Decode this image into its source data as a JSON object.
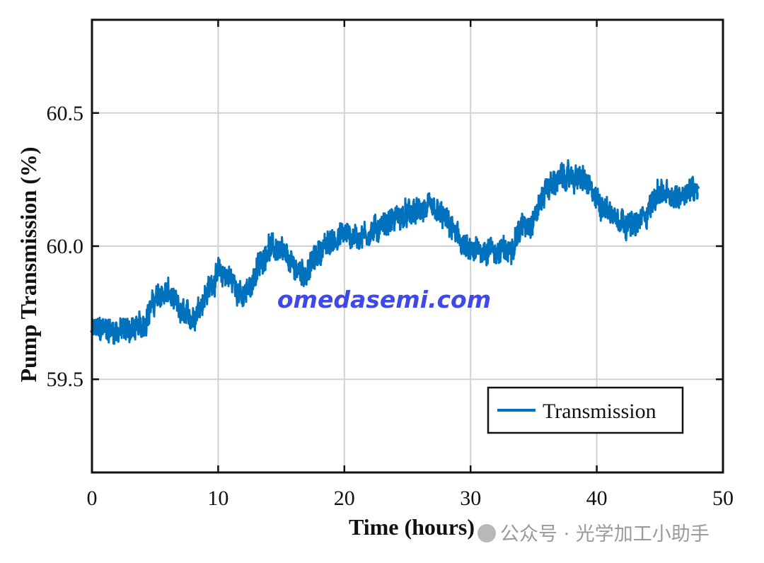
{
  "chart_data": {
    "type": "line",
    "xlabel": "Time (hours)",
    "ylabel": "Pump Transmission (%)",
    "xlim": [
      0,
      50
    ],
    "ylim": [
      59.15,
      60.85
    ],
    "xticks": [
      0,
      10,
      20,
      30,
      40,
      50
    ],
    "xtick_labels": [
      "0",
      "10",
      "20",
      "30",
      "40",
      "50"
    ],
    "yticks": [
      59.5,
      60.0,
      60.5
    ],
    "ytick_labels": [
      "59.5",
      "60.0",
      "60.5"
    ],
    "grid": true,
    "legend_position": "bottom-right",
    "series": [
      {
        "name": "Transmission",
        "color": "#0072BD",
        "x": [
          0,
          1,
          2,
          3,
          4,
          5,
          6,
          7,
          8,
          9,
          10,
          11,
          12,
          13,
          14,
          15,
          16,
          17,
          18,
          19,
          20,
          21,
          22,
          23,
          24,
          25,
          26,
          27,
          28,
          29,
          30,
          31,
          32,
          33,
          34,
          35,
          36,
          37,
          38,
          39,
          40,
          41,
          42,
          43,
          44,
          45,
          46,
          47,
          48
        ],
        "y": [
          59.68,
          59.69,
          59.68,
          59.69,
          59.7,
          59.8,
          59.83,
          59.75,
          59.73,
          59.82,
          59.9,
          59.88,
          59.8,
          59.9,
          60.0,
          59.98,
          59.92,
          59.9,
          59.98,
          60.02,
          60.05,
          60.03,
          60.05,
          60.08,
          60.1,
          60.12,
          60.13,
          60.14,
          60.1,
          60.03,
          59.97,
          59.99,
          59.98,
          59.98,
          60.07,
          60.1,
          60.22,
          60.25,
          60.26,
          60.25,
          60.17,
          60.13,
          60.1,
          60.07,
          60.13,
          60.21,
          60.17,
          60.21,
          60.22
        ]
      }
    ]
  },
  "overlays": {
    "watermark": "omedasemi.com",
    "credit": "公众号 · 光学加工小助手"
  }
}
